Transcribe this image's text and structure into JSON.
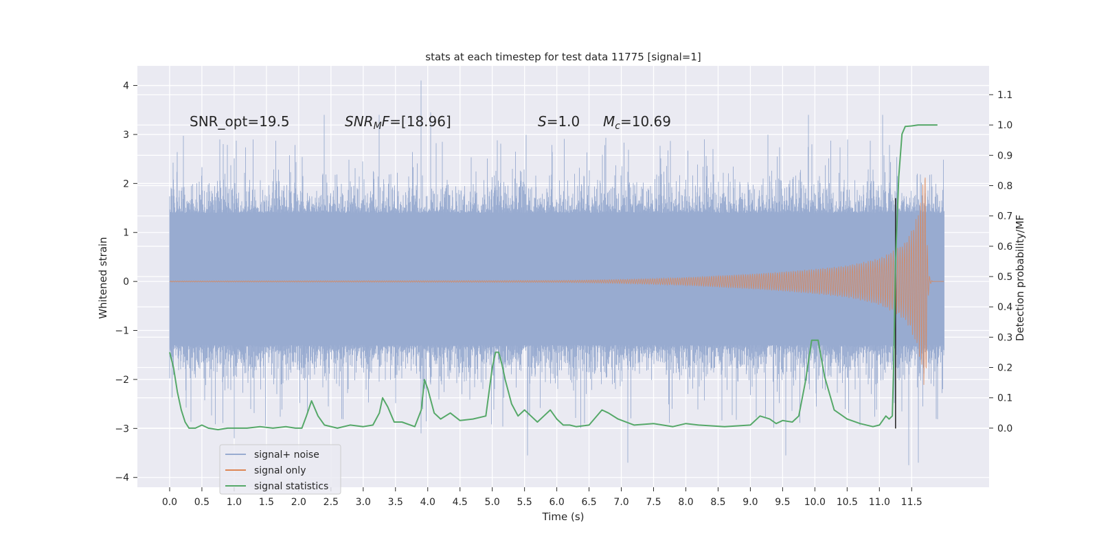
{
  "chart_data": {
    "type": "line",
    "title": "stats at each timestep for test data 11775 [signal=1]",
    "xlabel": "Time (s)",
    "ylabel_left": "Whitened strain",
    "ylabel_right": "Detection probability/MF",
    "xlim": [
      -0.5,
      12.7
    ],
    "ylim_left": [
      -4.2,
      4.4
    ],
    "ylim_right": [
      -0.195,
      1.195
    ],
    "x_ticks": [
      0.0,
      0.5,
      1.0,
      1.5,
      2.0,
      2.5,
      3.0,
      3.5,
      4.0,
      4.5,
      5.0,
      5.5,
      6.0,
      6.5,
      7.0,
      7.5,
      8.0,
      8.5,
      9.0,
      9.5,
      10.0,
      10.5,
      11.0,
      11.5
    ],
    "x_tick_labels": [
      "0.0",
      "0.5",
      "1.0",
      "1.5",
      "2.0",
      "2.5",
      "3.0",
      "3.5",
      "4.0",
      "4.5",
      "5.0",
      "5.5",
      "6.0",
      "6.5",
      "7.0",
      "7.5",
      "8.0",
      "8.5",
      "9.0",
      "9.5",
      "10.0",
      "10.5",
      "11.0",
      "11.5"
    ],
    "y_left_ticks": [
      -4,
      -3,
      -2,
      -1,
      0,
      1,
      2,
      3,
      4
    ],
    "y_left_tick_labels": [
      "−4",
      "−3",
      "−2",
      "−1",
      "0",
      "1",
      "2",
      "3",
      "4"
    ],
    "y_right_ticks": [
      0.0,
      0.1,
      0.2,
      0.3,
      0.4,
      0.5,
      0.6,
      0.7,
      0.8,
      0.9,
      1.0,
      1.1
    ],
    "y_right_tick_labels": [
      "0.0",
      "0.1",
      "0.2",
      "0.3",
      "0.4",
      "0.5",
      "0.6",
      "0.7",
      "0.8",
      "0.9",
      "1.0",
      "1.1"
    ],
    "grid": true,
    "legend_position": "lower-left",
    "annotations": {
      "snr_opt": "SNR_opt=19.5",
      "snr_mf_main": "SNR",
      "snr_mf_sub": "M",
      "snr_mf_f": "F",
      "snr_mf_value": "=[18.96]",
      "s_symbol": "S",
      "s_value": "=1.0",
      "mc_symbol": "M",
      "mc_sub": "c",
      "mc_value": "=10.69"
    },
    "colors": {
      "background": "#eaeaf2",
      "grid": "#ffffff",
      "signal_noise": "#98abd0",
      "signal_only": "#dd8452",
      "signal_statistics": "#55a868",
      "vline": "#2b2b2b"
    },
    "series": [
      {
        "name": "signal+ noise",
        "kind": "noise-band",
        "x_range": [
          0.0,
          12.0
        ],
        "core_band": [
          -1.3,
          1.4
        ],
        "typical_peak": [
          -2.4,
          2.5
        ],
        "extreme_peaks": [
          {
            "x": 3.9,
            "y": 4.1
          },
          {
            "x": 2.4,
            "y": 3.4
          },
          {
            "x": 3.25,
            "y": 3.4
          },
          {
            "x": 4.05,
            "y": 3.45
          },
          {
            "x": 9.9,
            "y": 3.4
          },
          {
            "x": 11.05,
            "y": 3.4
          },
          {
            "x": 5.55,
            "y": -3.55
          },
          {
            "x": 7.1,
            "y": -3.7
          },
          {
            "x": 11.45,
            "y": -3.75
          },
          {
            "x": 11.6,
            "y": -3.7
          },
          {
            "x": 9.55,
            "y": -3.55
          },
          {
            "x": 3.9,
            "y": -3.1
          },
          {
            "x": 1.0,
            "y": -3.2
          }
        ]
      },
      {
        "name": "signal only",
        "kind": "chirp",
        "x_range": [
          0.0,
          12.0
        ],
        "merger_time": 11.72,
        "peak_amplitude": 2.5,
        "envelope": [
          {
            "x": 0.0,
            "a": 0.01
          },
          {
            "x": 6.0,
            "a": 0.02
          },
          {
            "x": 7.3,
            "a": 0.05
          },
          {
            "x": 8.5,
            "a": 0.12
          },
          {
            "x": 9.5,
            "a": 0.2
          },
          {
            "x": 10.5,
            "a": 0.33
          },
          {
            "x": 11.0,
            "a": 0.48
          },
          {
            "x": 11.4,
            "a": 0.8
          },
          {
            "x": 11.6,
            "a": 1.4
          },
          {
            "x": 11.72,
            "a": 2.5
          }
        ]
      },
      {
        "name": "signal statistics",
        "kind": "line",
        "axis": "right",
        "x": [
          0.0,
          0.06,
          0.12,
          0.18,
          0.24,
          0.3,
          0.4,
          0.5,
          0.6,
          0.75,
          0.9,
          1.0,
          1.2,
          1.4,
          1.6,
          1.8,
          1.95,
          2.05,
          2.12,
          2.2,
          2.3,
          2.4,
          2.6,
          2.8,
          3.0,
          3.15,
          3.25,
          3.3,
          3.38,
          3.48,
          3.6,
          3.8,
          3.9,
          3.95,
          4.0,
          4.1,
          4.2,
          4.35,
          4.5,
          4.7,
          4.9,
          5.0,
          5.05,
          5.1,
          5.15,
          5.2,
          5.3,
          5.4,
          5.5,
          5.6,
          5.7,
          5.8,
          5.9,
          6.0,
          6.1,
          6.2,
          6.3,
          6.5,
          6.7,
          6.8,
          6.95,
          7.2,
          7.5,
          7.8,
          8.0,
          8.2,
          8.6,
          9.0,
          9.15,
          9.3,
          9.4,
          9.5,
          9.65,
          9.75,
          9.85,
          9.95,
          10.05,
          10.15,
          10.3,
          10.5,
          10.7,
          10.9,
          11.0,
          11.1,
          11.15,
          11.2,
          11.22,
          11.25,
          11.3,
          11.35,
          11.4,
          11.5,
          11.6,
          11.8,
          11.9
        ],
        "y": [
          0.25,
          0.2,
          0.12,
          0.06,
          0.02,
          0.0,
          0.0,
          0.01,
          0.0,
          -0.005,
          0.0,
          0.0,
          0.0,
          0.005,
          0.0,
          0.005,
          0.0,
          0.0,
          0.04,
          0.09,
          0.04,
          0.01,
          0.0,
          0.01,
          0.005,
          0.01,
          0.05,
          0.1,
          0.07,
          0.02,
          0.02,
          0.005,
          0.06,
          0.16,
          0.13,
          0.05,
          0.03,
          0.05,
          0.025,
          0.03,
          0.04,
          0.2,
          0.25,
          0.25,
          0.21,
          0.16,
          0.08,
          0.04,
          0.06,
          0.04,
          0.02,
          0.04,
          0.06,
          0.03,
          0.01,
          0.01,
          0.005,
          0.01,
          0.06,
          0.05,
          0.03,
          0.01,
          0.015,
          0.005,
          0.015,
          0.01,
          0.005,
          0.01,
          0.04,
          0.03,
          0.015,
          0.025,
          0.02,
          0.04,
          0.15,
          0.29,
          0.29,
          0.17,
          0.06,
          0.03,
          0.015,
          0.005,
          0.01,
          0.04,
          0.03,
          0.04,
          0.2,
          0.55,
          0.83,
          0.97,
          0.995,
          0.997,
          1.0,
          1.0,
          1.0
        ]
      }
    ],
    "vertical_line_x": 11.25
  }
}
